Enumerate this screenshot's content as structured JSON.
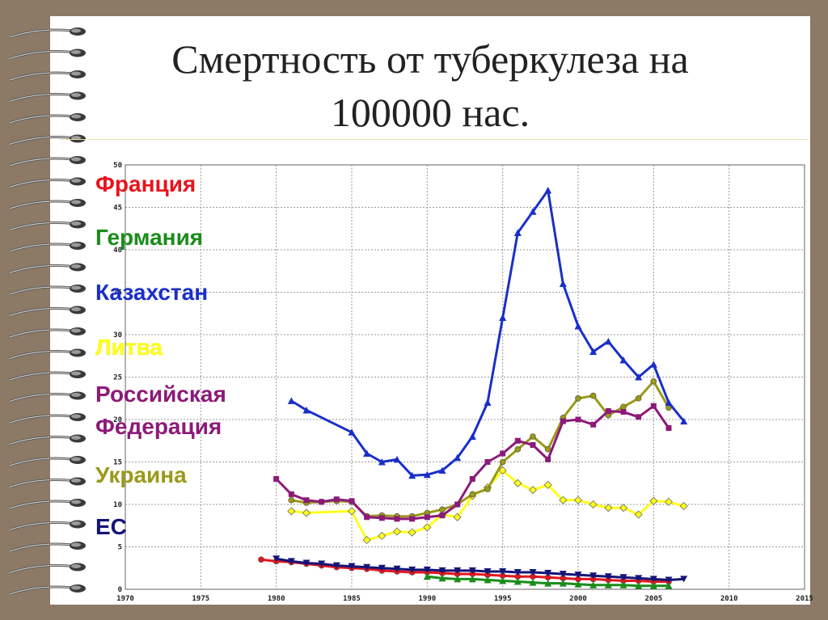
{
  "slide": {
    "title_line1": "Смертность от туберкулеза на",
    "title_line2": "100000 нас."
  },
  "chart_data": {
    "type": "line",
    "title": "Смертность от туберкулеза на 100000 нас.",
    "xlabel": "",
    "ylabel": "",
    "xlim": [
      1970,
      2015
    ],
    "ylim": [
      0,
      50
    ],
    "x_ticks": [
      1970,
      1975,
      1980,
      1985,
      1990,
      1995,
      2000,
      2005,
      2010,
      2015
    ],
    "y_ticks": [
      0,
      5,
      10,
      15,
      20,
      25,
      30,
      35,
      40,
      45,
      50
    ],
    "grid": true,
    "legend_position": "left",
    "series": [
      {
        "name": "Франция",
        "color": "#e8141c",
        "marker": "circle",
        "x": [
          1979,
          1980,
          1981,
          1982,
          1983,
          1984,
          1985,
          1986,
          1987,
          1988,
          1989,
          1990,
          1991,
          1992,
          1993,
          1994,
          1995,
          1996,
          1997,
          1998,
          1999,
          2000,
          2001,
          2002,
          2003,
          2004,
          2005,
          2006
        ],
        "y": [
          3.5,
          3.3,
          3.2,
          3.0,
          2.8,
          2.6,
          2.5,
          2.4,
          2.2,
          2.1,
          2.0,
          2.0,
          1.9,
          1.8,
          1.8,
          1.7,
          1.6,
          1.5,
          1.5,
          1.4,
          1.3,
          1.2,
          1.2,
          1.1,
          1.0,
          1.0,
          0.9,
          0.9
        ]
      },
      {
        "name": "Германия",
        "color": "#1a8c1a",
        "marker": "triangle",
        "x": [
          1990,
          1991,
          1992,
          1993,
          1994,
          1995,
          1996,
          1997,
          1998,
          1999,
          2000,
          2001,
          2002,
          2003,
          2004,
          2005,
          2006
        ],
        "y": [
          1.5,
          1.3,
          1.2,
          1.2,
          1.1,
          1.0,
          0.9,
          0.8,
          0.7,
          0.7,
          0.6,
          0.5,
          0.5,
          0.5,
          0.4,
          0.4,
          0.4
        ]
      },
      {
        "name": "Казахстан",
        "color": "#1a2fc8",
        "marker": "triangle",
        "x": [
          1981,
          1982,
          1985,
          1986,
          1987,
          1988,
          1989,
          1990,
          1991,
          1992,
          1993,
          1994,
          1995,
          1996,
          1997,
          1998,
          1999,
          2000,
          2001,
          2002,
          2003,
          2004,
          2005,
          2006,
          2007
        ],
        "y": [
          22.2,
          21.1,
          18.5,
          16.0,
          15.0,
          15.3,
          13.4,
          13.5,
          14.0,
          15.5,
          18.0,
          22.0,
          32.0,
          42.0,
          44.5,
          47.0,
          36.0,
          31.0,
          28.0,
          29.2,
          27.0,
          25.0,
          26.5,
          22.0,
          19.8
        ]
      },
      {
        "name": "Литва",
        "color": "#ffff1a",
        "marker": "diamond",
        "x": [
          1981,
          1982,
          1985,
          1986,
          1987,
          1988,
          1989,
          1990,
          1991,
          1992,
          1993,
          1994,
          1995,
          1996,
          1997,
          1998,
          1999,
          2000,
          2001,
          2002,
          2003,
          2004,
          2005,
          2006,
          2007
        ],
        "y": [
          9.2,
          9.0,
          9.2,
          5.8,
          6.3,
          6.8,
          6.7,
          7.3,
          8.8,
          8.5,
          11.0,
          12.0,
          14.0,
          12.5,
          11.7,
          12.3,
          10.5,
          10.5,
          10.0,
          9.6,
          9.6,
          8.8,
          10.4,
          10.3,
          9.8
        ]
      },
      {
        "name": "Российская Федерация",
        "color": "#8c1a78",
        "marker": "square",
        "x": [
          1980,
          1981,
          1982,
          1983,
          1984,
          1985,
          1986,
          1987,
          1988,
          1989,
          1990,
          1991,
          1992,
          1993,
          1994,
          1995,
          1996,
          1997,
          1998,
          1999,
          2000,
          2001,
          2002,
          2003,
          2004,
          2005,
          2006
        ],
        "y": [
          13.0,
          11.2,
          10.5,
          10.3,
          10.6,
          10.4,
          8.5,
          8.4,
          8.3,
          8.3,
          8.5,
          8.7,
          10.0,
          13.0,
          15.0,
          16.0,
          17.5,
          17.0,
          15.3,
          19.8,
          20.0,
          19.4,
          21.0,
          20.9,
          20.3,
          21.6,
          19.0
        ]
      },
      {
        "name": "Украина",
        "color": "#9a9a1a",
        "marker": "circle",
        "x": [
          1981,
          1982,
          1983,
          1984,
          1985,
          1986,
          1987,
          1988,
          1989,
          1990,
          1991,
          1992,
          1993,
          1994,
          1995,
          1996,
          1997,
          1998,
          1999,
          2000,
          2001,
          2002,
          2003,
          2004,
          2005,
          2006
        ],
        "y": [
          10.5,
          10.2,
          10.3,
          10.4,
          10.3,
          8.6,
          8.7,
          8.6,
          8.6,
          9.0,
          9.4,
          10.0,
          11.2,
          11.8,
          15.0,
          16.5,
          18.0,
          16.5,
          20.2,
          22.5,
          22.8,
          20.5,
          21.5,
          22.5,
          24.5,
          21.4
        ]
      },
      {
        "name": "ЕС",
        "color": "#141478",
        "marker": "triangle-down",
        "x": [
          1980,
          1981,
          1982,
          1983,
          1984,
          1985,
          1986,
          1987,
          1988,
          1989,
          1990,
          1991,
          1992,
          1993,
          1994,
          1995,
          1996,
          1997,
          1998,
          1999,
          2000,
          2001,
          2002,
          2003,
          2004,
          2005,
          2006,
          2007
        ],
        "y": [
          3.6,
          3.3,
          3.1,
          3.0,
          2.8,
          2.7,
          2.6,
          2.5,
          2.4,
          2.3,
          2.3,
          2.2,
          2.2,
          2.2,
          2.1,
          2.1,
          2.0,
          2.0,
          1.9,
          1.8,
          1.7,
          1.6,
          1.5,
          1.4,
          1.3,
          1.2,
          1.1,
          1.2
        ]
      }
    ]
  },
  "legend_labels": {
    "france": "Франция",
    "germany": "Германия",
    "kazakhstan": "Казахстан",
    "lithuania": "Литва",
    "russia_1": "Российская",
    "russia_2": "Федерация",
    "ukraine": "Украина",
    "eu": "ЕС"
  }
}
